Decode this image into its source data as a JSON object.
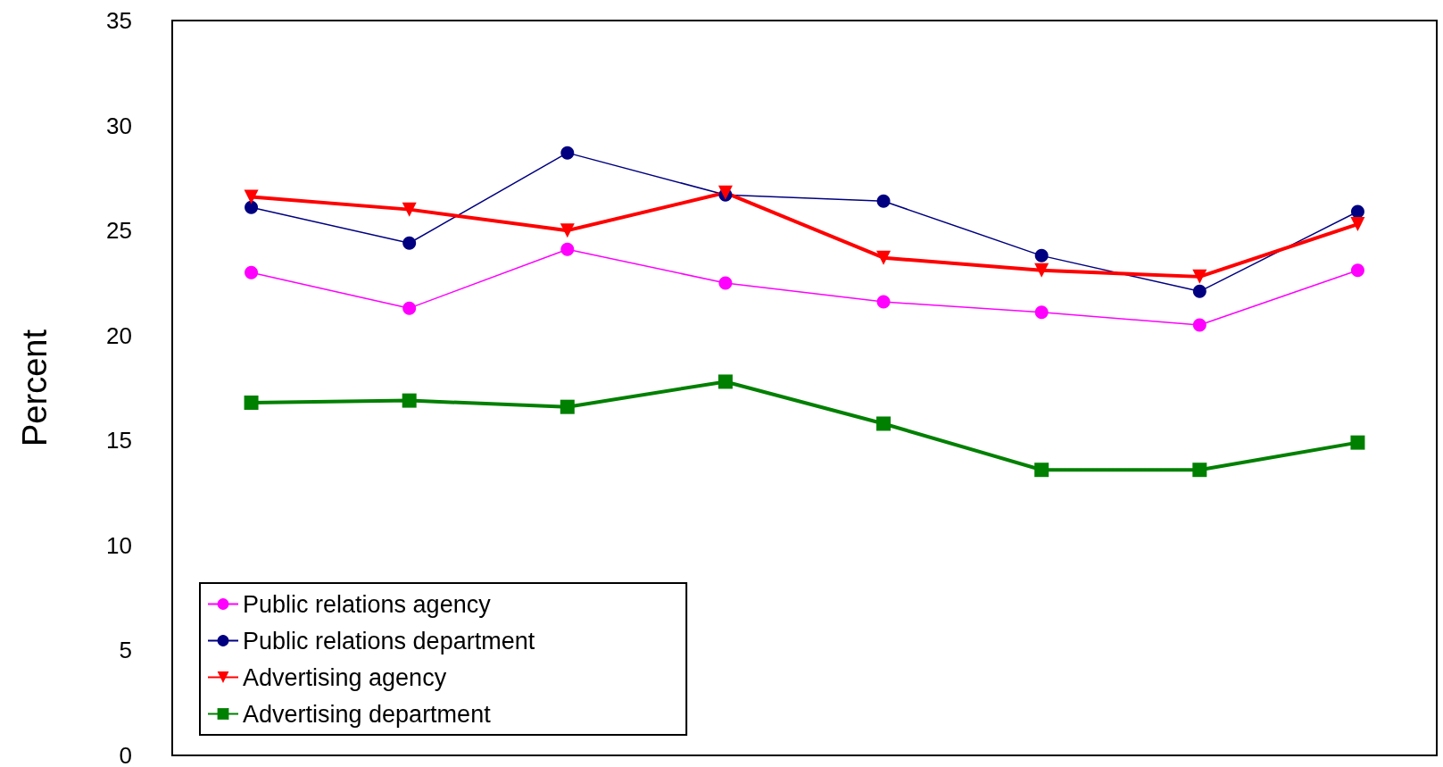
{
  "chart_data": {
    "type": "line",
    "ylabel": "Percent",
    "categories": [
      null,
      null,
      null,
      null,
      null,
      null,
      null,
      null
    ],
    "series": [
      {
        "name": "Public relations agency",
        "color": "#ff00ff",
        "marker": "circle",
        "values": [
          23.0,
          21.3,
          24.1,
          22.5,
          21.6,
          21.1,
          20.5,
          23.1
        ]
      },
      {
        "name": "Public relations department",
        "color": "#000080",
        "marker": "circle",
        "values": [
          26.1,
          24.4,
          28.7,
          26.7,
          26.4,
          23.8,
          22.1,
          25.9
        ]
      },
      {
        "name": "Advertising agency",
        "color": "#ff0000",
        "marker": "triangle",
        "values": [
          26.6,
          26.0,
          25.0,
          26.8,
          23.7,
          23.1,
          22.8,
          25.3
        ]
      },
      {
        "name": "Advertising department",
        "color": "#008000",
        "marker": "square",
        "values": [
          16.8,
          16.9,
          16.6,
          17.8,
          15.8,
          13.6,
          13.6,
          14.9
        ]
      }
    ],
    "ylim": [
      0,
      35
    ],
    "yticks": [
      0,
      5,
      10,
      15,
      20,
      25,
      30,
      35
    ],
    "grid": false,
    "legend": "bottom left"
  }
}
